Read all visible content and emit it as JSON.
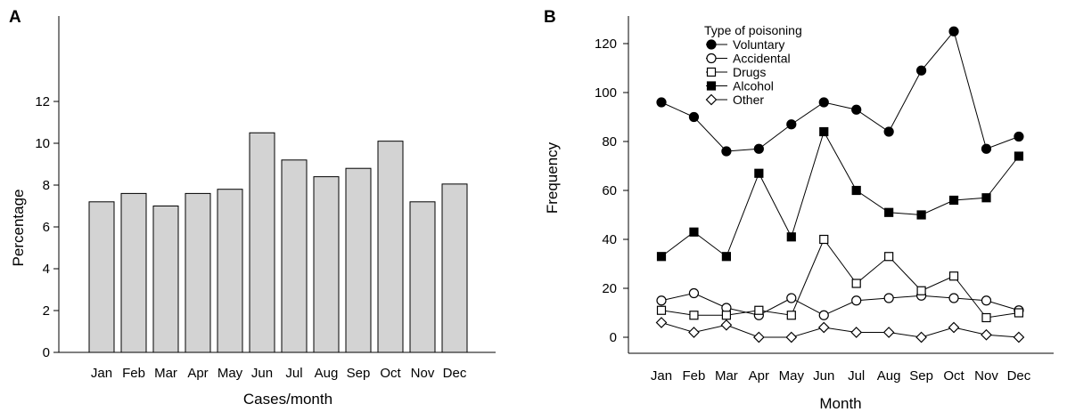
{
  "chart_data": [
    {
      "panel": "A",
      "type": "bar",
      "categories": [
        "Jan",
        "Feb",
        "Mar",
        "Apr",
        "May",
        "Jun",
        "Jul",
        "Aug",
        "Sep",
        "Oct",
        "Nov",
        "Dec"
      ],
      "values": [
        7.2,
        7.6,
        7.0,
        7.6,
        7.8,
        10.5,
        9.2,
        8.4,
        8.8,
        10.1,
        7.2,
        8.05
      ],
      "xlabel": "Cases/month",
      "ylabel": "Percentage",
      "ylim": [
        0,
        14
      ],
      "yticks": [
        0,
        2,
        4,
        6,
        8,
        10,
        12
      ],
      "bar_color": "#d3d3d3",
      "grid": false
    },
    {
      "panel": "B",
      "type": "line",
      "categories": [
        "Jan",
        "Feb",
        "Mar",
        "Apr",
        "May",
        "Jun",
        "Jul",
        "Aug",
        "Sep",
        "Oct",
        "Nov",
        "Dec"
      ],
      "xlabel": "Month",
      "ylabel": "Frequency",
      "ylim": [
        -7,
        132
      ],
      "yticks": [
        0,
        20,
        40,
        60,
        80,
        100,
        120
      ],
      "legend_title": "Type of poisoning",
      "legend_position": "top-left",
      "grid": false,
      "series": [
        {
          "name": "Voluntary",
          "marker": "filled-circle",
          "values": [
            96,
            90,
            76,
            77,
            87,
            96,
            93,
            84,
            109,
            125,
            77,
            82
          ]
        },
        {
          "name": "Accidental",
          "marker": "open-circle",
          "values": [
            15,
            18,
            12,
            9,
            16,
            9,
            15,
            16,
            17,
            16,
            15,
            11
          ]
        },
        {
          "name": "Drugs",
          "marker": "open-square",
          "values": [
            11,
            9,
            9,
            11,
            9,
            40,
            22,
            33,
            19,
            25,
            8,
            10
          ]
        },
        {
          "name": "Alcohol",
          "marker": "filled-square",
          "values": [
            33,
            43,
            33,
            67,
            41,
            84,
            60,
            51,
            50,
            56,
            57,
            74
          ]
        },
        {
          "name": "Other",
          "marker": "open-diamond",
          "values": [
            6,
            2,
            5,
            0,
            0,
            4,
            2,
            2,
            0,
            4,
            1,
            0
          ]
        }
      ]
    }
  ],
  "labels": {
    "panel_a": "A",
    "panel_b": "B"
  }
}
